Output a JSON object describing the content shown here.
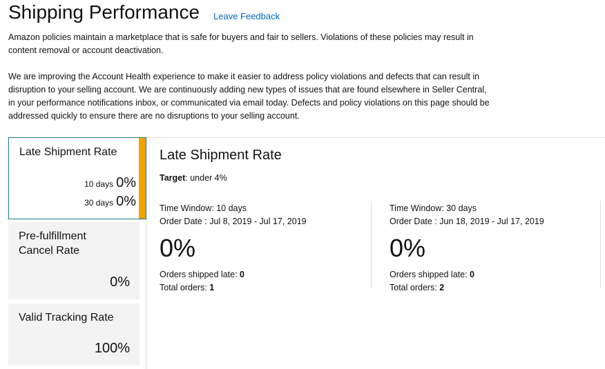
{
  "header": {
    "title": "Shipping Performance",
    "feedback_link": "Leave Feedback"
  },
  "intro": {
    "paragraph1": "Amazon policies maintain a marketplace that is safe for buyers and fair to sellers. Violations of these policies may result in content removal or account deactivation.",
    "paragraph2": "We are improving the Account Health experience to make it easier to address policy violations and defects that can result in disruption to your selling account. We are continuously adding new types of issues that are found elsewhere in Seller Central, in your performance notifications inbox, or communicated via email today. Defects and policy violations on this page should be addressed quickly to ensure there are no disruptions to your selling account."
  },
  "sidebar": {
    "cards": [
      {
        "title": "Late Shipment Rate",
        "rows": [
          {
            "label": "10 days",
            "value": "0%"
          },
          {
            "label": "30 days",
            "value": "0%"
          }
        ]
      },
      {
        "title": "Pre-fulfillment Cancel Rate",
        "value": "0%"
      },
      {
        "title": "Valid Tracking Rate",
        "value": "100%"
      }
    ]
  },
  "detail": {
    "title": "Late Shipment Rate",
    "target_label": "Target",
    "target_value": ": under 4%",
    "columns": [
      {
        "time_window": "Time Window: 10 days",
        "order_date": "Order Date : Jul 8, 2019 - Jul 17, 2019",
        "rate": "0%",
        "shipped_late_label": "Orders shipped late: ",
        "shipped_late_value": "0",
        "total_orders_label": "Total orders: ",
        "total_orders_value": "1"
      },
      {
        "time_window": "Time Window: 30 days",
        "order_date": "Order Date : Jun 18, 2019 - Jul 17, 2019",
        "rate": "0%",
        "shipped_late_label": "Orders shipped late: ",
        "shipped_late_value": "0",
        "total_orders_label": "Total orders: ",
        "total_orders_value": "2"
      }
    ]
  },
  "colors": {
    "link": "#0066c0",
    "accent": "#f5a100",
    "active_border": "#1a7a8a",
    "card_bg": "#f3f3f3"
  }
}
